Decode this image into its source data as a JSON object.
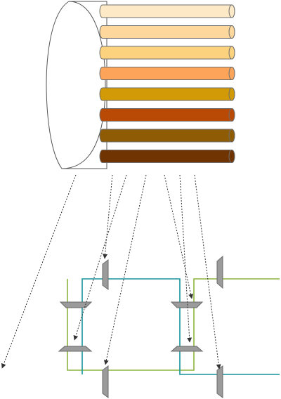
{
  "colors": {
    "outline": "#555555",
    "cylinder_fill": "#ffffff",
    "fiber_outline": "#6e6e6e",
    "green_wire": "#8cb33e",
    "teal_wire": "#15949b",
    "connector_fill": "#9b9b9b",
    "connector_outline": "#6a6a6a",
    "arrow": "#333333"
  },
  "fibers": [
    {
      "id": "fiber-1",
      "color": "#fde9c6"
    },
    {
      "id": "fiber-2",
      "color": "#fdd79c"
    },
    {
      "id": "fiber-3",
      "color": "#fdd27f"
    },
    {
      "id": "fiber-4",
      "color": "#fca55a"
    },
    {
      "id": "fiber-5",
      "color": "#d29a06"
    },
    {
      "id": "fiber-6",
      "color": "#b84a06"
    },
    {
      "id": "fiber-7",
      "color": "#8f5c05"
    },
    {
      "id": "fiber-8",
      "color": "#703302"
    }
  ]
}
